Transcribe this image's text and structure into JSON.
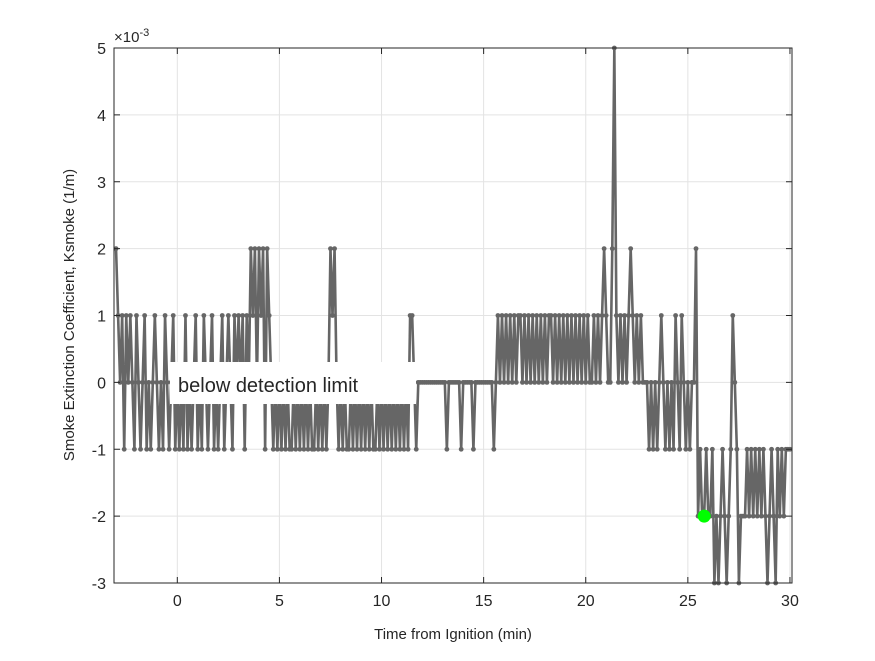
{
  "chart_data": {
    "type": "line",
    "title": "",
    "xlabel": "Time from Ignition (min)",
    "ylabel": "Smoke Extinction Coefficient, Ksmoke (1/m)",
    "y_exponent_label": "×10",
    "y_exponent_power": "-3",
    "xlim": [
      -3.1,
      30.1
    ],
    "ylim": [
      -3,
      5
    ],
    "xticks": [
      0,
      5,
      10,
      15,
      20,
      25,
      30
    ],
    "yticks": [
      -3,
      -2,
      -1,
      0,
      1,
      2,
      3,
      4,
      5
    ],
    "grid": true,
    "line_color": "#666666",
    "x_range": [
      -3,
      30
    ],
    "sample_interval_min": 0.1,
    "series": [
      {
        "y": [
          2,
          1,
          0,
          1,
          -1,
          1,
          0,
          1,
          0,
          -1,
          1,
          0,
          -1,
          0,
          1,
          -1,
          0,
          -1,
          0,
          1,
          0,
          -1,
          0,
          -1,
          1,
          0,
          -1,
          0,
          1,
          -1,
          0,
          -1,
          0,
          -1,
          1,
          -1,
          0,
          -1,
          0,
          1,
          -1,
          0,
          -1,
          1,
          0,
          -1,
          0,
          1,
          -1,
          0,
          -1,
          0,
          1,
          -1,
          0,
          1,
          0,
          -1,
          1,
          0,
          1,
          0,
          1,
          -1,
          1,
          0,
          2,
          1,
          2,
          0,
          2,
          1,
          2,
          -1,
          2,
          1,
          0,
          -1,
          0,
          -1,
          0,
          -1,
          0,
          -1,
          0,
          -1,
          -1,
          0,
          -1,
          0,
          -1,
          0,
          -1,
          0,
          -1,
          0,
          -1,
          -1,
          0,
          -1,
          0,
          -1,
          0,
          -1,
          0,
          2,
          1,
          2,
          0,
          -1,
          0,
          -1,
          0,
          -1,
          -1,
          0,
          -1,
          0,
          -1,
          0,
          -1,
          0,
          -1,
          0,
          -1,
          0,
          -1,
          -1,
          0,
          -1,
          0,
          -1,
          0,
          -1,
          0,
          -1,
          0,
          -1,
          0,
          -1,
          0,
          -1,
          0,
          -1,
          1,
          1,
          0,
          -1,
          0,
          0,
          0,
          0,
          0,
          0,
          0,
          0,
          0,
          0,
          0,
          0,
          0,
          0,
          -1,
          0,
          0,
          0,
          0,
          0,
          0,
          -1,
          0,
          0,
          0,
          0,
          0,
          -1,
          0,
          0,
          0,
          0,
          0,
          0,
          0,
          0,
          0,
          -1,
          0,
          1,
          0,
          1,
          0,
          1,
          0,
          1,
          0,
          1,
          0,
          1,
          1,
          0,
          1,
          0,
          1,
          0,
          1,
          0,
          1,
          0,
          1,
          0,
          1,
          0,
          1,
          1,
          0,
          1,
          0,
          1,
          0,
          1,
          0,
          1,
          0,
          1,
          0,
          1,
          0,
          1,
          0,
          1,
          0,
          1,
          0,
          0,
          1,
          0,
          1,
          0,
          1,
          2,
          1,
          0,
          0,
          2,
          5,
          1,
          0,
          1,
          0,
          1,
          0,
          1,
          2,
          1,
          0,
          1,
          0,
          1,
          0,
          0,
          0,
          -1,
          0,
          -1,
          0,
          -1,
          0,
          1,
          0,
          -1,
          0,
          -1,
          0,
          -1,
          1,
          0,
          -1,
          1,
          0,
          -1,
          0,
          -1,
          0,
          0,
          2,
          -2,
          -1,
          -2,
          -2,
          -1,
          -2,
          -2,
          -1,
          -3,
          -2,
          -3,
          -2,
          -1,
          -2,
          -3,
          -2,
          -1,
          1,
          0,
          -1,
          -3,
          -2,
          -2,
          -2,
          -1,
          -2,
          -1,
          -2,
          -1,
          -2,
          -1,
          -2,
          -1,
          -2,
          -3,
          -2,
          -1,
          -2,
          -3,
          -1,
          -2,
          -1,
          -2,
          -1,
          -1,
          -1
        ]
      }
    ],
    "highlight_point": {
      "x": 25.8,
      "y": -2,
      "color": "#00ff00"
    },
    "annotation": {
      "text": "below detection limit",
      "x": 0,
      "y": 0,
      "color": "#ff0000"
    }
  }
}
